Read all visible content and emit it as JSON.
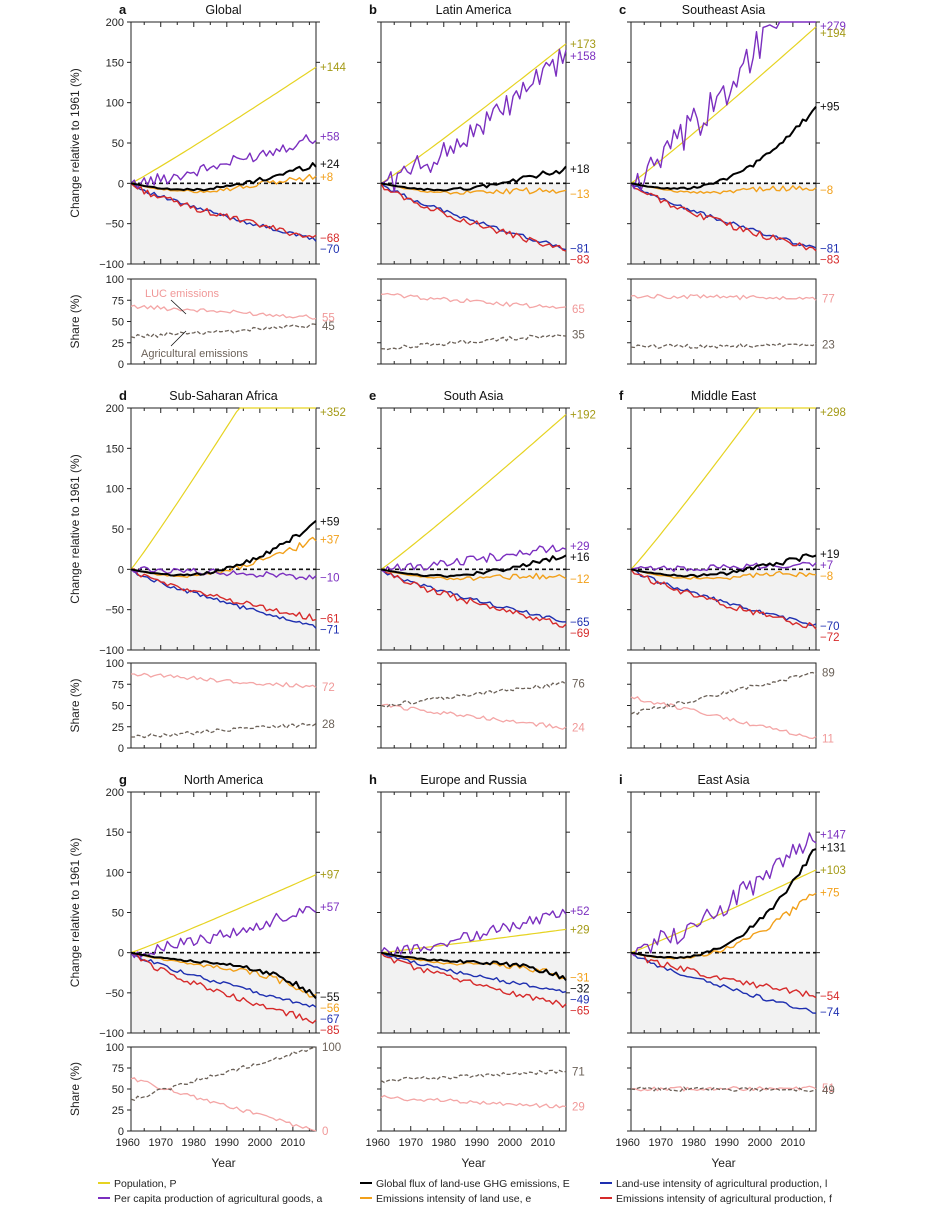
{
  "colors": {
    "population": "#e6d321",
    "per_capita": "#7b2fbf",
    "global_flux": "#000000",
    "land_use_intensity": "#1e2fb0",
    "emissions_intensity_land": "#f2a01a",
    "emissions_intensity_ag": "#d62a2a",
    "luc_share": "#f4a6a6",
    "ag_share": "#6b6158",
    "label_population": "#a49a16",
    "label_luc": "#f09898",
    "label_ag": "#6b6158"
  },
  "axes": {
    "main_ylabel": "Change relative to 1961 (%)",
    "share_ylabel": "Share (%)",
    "xlabel": "Year",
    "main_yticks": [
      "200",
      "150",
      "100",
      "50",
      "0",
      "−50",
      "−100"
    ],
    "share_yticks": [
      "100",
      "75",
      "50",
      "25",
      "0"
    ],
    "xticks": [
      "1960",
      "1970",
      "1980",
      "1990",
      "2000",
      "2010"
    ]
  },
  "annotations": {
    "luc": "LUC emissions",
    "ag": "Agricultural emissions"
  },
  "legend": {
    "population": "Population, P",
    "per_capita": "Per capita production of agricultural goods, a",
    "global_flux": "Global flux of land-use GHG emissions, E",
    "emissions_intensity_land": "Emissions intensity of land use, e",
    "land_use_intensity": "Land-use intensity of agricultural production, l",
    "emissions_intensity_ag": "Emissions intensity of agricultural production, f"
  },
  "chart_data": [
    {
      "letter": "a",
      "title": "Global",
      "type": "line",
      "x_range": [
        1961,
        2017
      ],
      "ylim": [
        -100,
        200
      ],
      "share_ylim": [
        0,
        100
      ],
      "end_values": {
        "P": 144,
        "a": 58,
        "E": 24,
        "e": 8,
        "f": -68,
        "l": -70
      },
      "end_labels": {
        "P": "+144",
        "a": "+58",
        "E": "+24",
        "e": "+8",
        "f": "−68",
        "l": "−70"
      },
      "share_end": {
        "luc": 55,
        "ag": 45
      },
      "share_start": {
        "luc": 68,
        "ag": 32
      }
    },
    {
      "letter": "b",
      "title": "Latin America",
      "type": "line",
      "x_range": [
        1961,
        2017
      ],
      "ylim": [
        -100,
        200
      ],
      "share_ylim": [
        0,
        100
      ],
      "end_values": {
        "P": 173,
        "a": 158,
        "E": 18,
        "e": -13,
        "l": -81,
        "f": -83
      },
      "end_labels": {
        "P": "+173",
        "a": "+158",
        "E": "+18",
        "e": "−13",
        "l": "−81",
        "f": "−83"
      },
      "share_end": {
        "luc": 65,
        "ag": 35
      },
      "share_start": {
        "luc": 82,
        "ag": 18
      }
    },
    {
      "letter": "c",
      "title": "Southeast Asia",
      "type": "line",
      "x_range": [
        1961,
        2017
      ],
      "ylim": [
        -100,
        200
      ],
      "share_ylim": [
        0,
        100
      ],
      "end_values": {
        "a": 279,
        "P": 194,
        "E": 95,
        "e": -8,
        "l": -81,
        "f": -83
      },
      "end_labels": {
        "a": "+279",
        "P": "+194",
        "E": "+95",
        "e": "−8",
        "l": "−81",
        "f": "−83"
      },
      "share_end": {
        "luc": 77,
        "ag": 23
      },
      "share_start": {
        "luc": 80,
        "ag": 20
      }
    },
    {
      "letter": "d",
      "title": "Sub-Saharan Africa",
      "type": "line",
      "x_range": [
        1961,
        2017
      ],
      "ylim": [
        -100,
        200
      ],
      "share_ylim": [
        0,
        100
      ],
      "end_values": {
        "P": 352,
        "E": 59,
        "e": 37,
        "a": -10,
        "f": -61,
        "l": -71
      },
      "end_labels": {
        "P": "+352",
        "E": "+59",
        "e": "+37",
        "a": "−10",
        "f": "−61",
        "l": "−71"
      },
      "share_end": {
        "luc": 72,
        "ag": 28
      },
      "share_start": {
        "luc": 87,
        "ag": 13
      }
    },
    {
      "letter": "e",
      "title": "South Asia",
      "type": "line",
      "x_range": [
        1961,
        2017
      ],
      "ylim": [
        -100,
        200
      ],
      "share_ylim": [
        0,
        100
      ],
      "end_values": {
        "P": 192,
        "a": 29,
        "E": 16,
        "e": -12,
        "l": -65,
        "f": -69
      },
      "end_labels": {
        "P": "+192",
        "a": "+29",
        "E": "+16",
        "e": "−12",
        "l": "−65",
        "f": "−69"
      },
      "share_end": {
        "ag": 76,
        "luc": 24
      },
      "share_start": {
        "ag": 50,
        "luc": 50
      }
    },
    {
      "letter": "f",
      "title": "Middle East",
      "type": "line",
      "x_range": [
        1961,
        2017
      ],
      "ylim": [
        -100,
        200
      ],
      "share_ylim": [
        0,
        100
      ],
      "end_values": {
        "P": 298,
        "E": 19,
        "a": 7,
        "e": -8,
        "l": -70,
        "f": -72
      },
      "end_labels": {
        "P": "+298",
        "E": "+19",
        "a": "+7",
        "e": "−8",
        "l": "−70",
        "f": "−72"
      },
      "share_end": {
        "ag": 89,
        "luc": 11
      },
      "share_start": {
        "ag": 40,
        "luc": 60
      }
    },
    {
      "letter": "g",
      "title": "North America",
      "type": "line",
      "x_range": [
        1961,
        2017
      ],
      "ylim": [
        -100,
        200
      ],
      "share_ylim": [
        0,
        100
      ],
      "end_values": {
        "P": 97,
        "a": 57,
        "E": -55,
        "e": -56,
        "l": -67,
        "f": -85
      },
      "end_labels": {
        "P": "+97",
        "a": "+57",
        "E": "−55",
        "e": "−56",
        "l": "−67",
        "f": "−85"
      },
      "share_end": {
        "ag": 100,
        "luc": 0
      },
      "share_start": {
        "ag": 38,
        "luc": 62
      }
    },
    {
      "letter": "h",
      "title": "Europe and Russia",
      "type": "line",
      "x_range": [
        1961,
        2017
      ],
      "ylim": [
        -100,
        200
      ],
      "share_ylim": [
        0,
        100
      ],
      "end_values": {
        "a": 52,
        "P": 29,
        "e": -31,
        "E": -32,
        "l": -49,
        "f": -65
      },
      "end_labels": {
        "a": "+52",
        "P": "+29",
        "e": "−31",
        "E": "−32",
        "l": "−49",
        "f": "−65"
      },
      "share_end": {
        "ag": 71,
        "luc": 29
      },
      "share_start": {
        "ag": 60,
        "luc": 40
      }
    },
    {
      "letter": "i",
      "title": "East Asia",
      "type": "line",
      "x_range": [
        1961,
        2017
      ],
      "ylim": [
        -100,
        200
      ],
      "share_ylim": [
        0,
        100
      ],
      "end_values": {
        "a": 147,
        "E": 131,
        "P": 103,
        "e": 75,
        "f": -54,
        "l": -74
      },
      "end_labels": {
        "a": "+147",
        "E": "+131",
        "P": "+103",
        "e": "+75",
        "f": "−54",
        "l": "−74"
      },
      "share_end": {
        "luc": 51,
        "ag": 49
      },
      "share_start": {
        "luc": 50,
        "ag": 50
      }
    }
  ]
}
